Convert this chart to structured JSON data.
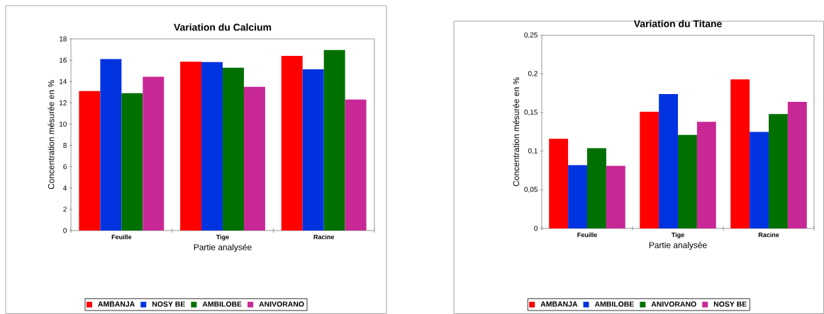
{
  "chart_data": [
    {
      "type": "bar",
      "title": "Variation du Calcium",
      "xlabel": "Partie analysée",
      "ylabel": "Concentration mésurée en %",
      "categories": [
        "Feuille",
        "Tige",
        "Racine"
      ],
      "series": [
        {
          "name": "AMBANJA",
          "color": "#ff0000",
          "values": [
            13.1,
            15.85,
            16.4
          ]
        },
        {
          "name": "NOSY BE",
          "color": "#0033e0",
          "values": [
            16.1,
            15.83,
            15.15
          ]
        },
        {
          "name": "AMBILOBE",
          "color": "#007000",
          "values": [
            12.9,
            15.3,
            16.95
          ]
        },
        {
          "name": "ANIVORANO",
          "color": "#c82896",
          "values": [
            14.45,
            13.5,
            12.3
          ]
        }
      ],
      "ylim": [
        0,
        18
      ],
      "yticks": [
        0,
        2,
        4,
        6,
        8,
        10,
        12,
        14,
        16,
        18
      ],
      "legend": "bottom"
    },
    {
      "type": "bar",
      "title": "Variation du Titane",
      "xlabel": "Partie analysée",
      "ylabel": "Concentration mésurée en %",
      "categories": [
        "Feuille",
        "Tige",
        "Racine"
      ],
      "series": [
        {
          "name": "AMBANJA",
          "color": "#ff0000",
          "values": [
            0.116,
            0.151,
            0.193
          ]
        },
        {
          "name": "AMBILOBE",
          "color": "#0033e0",
          "values": [
            0.082,
            0.174,
            0.125
          ]
        },
        {
          "name": "ANIVORANO",
          "color": "#007000",
          "values": [
            0.104,
            0.121,
            0.148
          ]
        },
        {
          "name": "NOSY BE",
          "color": "#c82896",
          "values": [
            0.081,
            0.138,
            0.164
          ]
        }
      ],
      "ylim": [
        0,
        0.25
      ],
      "yticks": [
        0,
        {
          "value": 0.05,
          "label": "0,05"
        },
        {
          "value": 0.1,
          "label": "0,1"
        },
        {
          "value": 0.15,
          "label": "0,15"
        },
        {
          "value": 0.2,
          "label": "0,2"
        },
        {
          "value": 0.25,
          "label": "0,25"
        }
      ],
      "legend": "bottom"
    }
  ]
}
